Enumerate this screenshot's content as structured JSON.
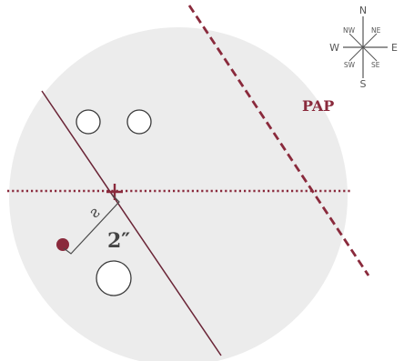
{
  "colors": {
    "field": "#ececec",
    "accent": "#8a2a3c",
    "ink": "#4a4a4a"
  },
  "diagram": {
    "pap_label": "PAP",
    "distance_label": "2″",
    "angle_glyph": "ƨ",
    "compass": {
      "n": "N",
      "s": "S",
      "e": "E",
      "w": "W",
      "ne": "NE",
      "nw": "NW",
      "se": "SE",
      "sw": "SW"
    }
  }
}
